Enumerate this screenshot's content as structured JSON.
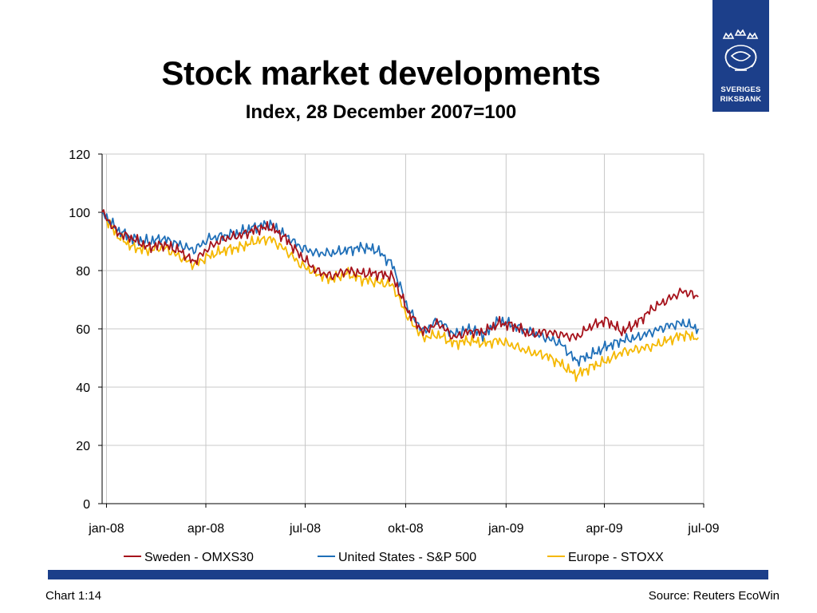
{
  "header": {
    "title": "Stock market developments",
    "subtitle": "Index, 28 December 2007=100",
    "logo": {
      "line1": "SVERIGES",
      "line2": "RIKSBANK",
      "icon": "riksbank-crest-icon"
    }
  },
  "footer": {
    "chart_number": "Chart 1:14",
    "source": "Source: Reuters EcoWin"
  },
  "colors": {
    "sweden": "#a6121b",
    "us": "#1f6fb8",
    "europe": "#f5b800",
    "brand": "#1c3f8a",
    "grid": "#c8c8c8"
  },
  "chart_data": {
    "type": "line",
    "title": "Stock market developments",
    "subtitle": "Index, 28 December 2007=100",
    "xlabel": "",
    "ylabel": "",
    "ylim": [
      0,
      120
    ],
    "yticks": [
      0,
      20,
      40,
      60,
      80,
      100,
      120
    ],
    "xticks": [
      "jan-08",
      "apr-08",
      "jul-08",
      "okt-08",
      "jan-09",
      "apr-09",
      "jul-09"
    ],
    "xlim": [
      "2007-12-28",
      "2009-07-01"
    ],
    "grid": true,
    "legend": "bottom",
    "x": [
      "2007-12-28",
      "2008-01-11",
      "2008-01-25",
      "2008-02-08",
      "2008-02-22",
      "2008-03-07",
      "2008-03-21",
      "2008-04-04",
      "2008-04-18",
      "2008-05-02",
      "2008-05-16",
      "2008-05-30",
      "2008-06-13",
      "2008-06-27",
      "2008-07-11",
      "2008-07-25",
      "2008-08-08",
      "2008-08-22",
      "2008-09-05",
      "2008-09-19",
      "2008-10-03",
      "2008-10-17",
      "2008-10-31",
      "2008-11-14",
      "2008-11-28",
      "2008-12-12",
      "2008-12-26",
      "2009-01-09",
      "2009-01-23",
      "2009-02-06",
      "2009-02-20",
      "2009-03-06",
      "2009-03-20",
      "2009-04-03",
      "2009-04-17",
      "2009-05-01",
      "2009-05-15",
      "2009-05-29",
      "2009-06-12",
      "2009-06-26"
    ],
    "series": [
      {
        "name": "Sweden - OMXS30",
        "color": "#a6121b",
        "values": [
          100,
          93,
          91,
          88,
          89,
          87,
          83,
          88,
          91,
          92,
          94,
          95,
          91,
          85,
          80,
          78,
          80,
          79,
          79,
          78,
          66,
          59,
          62,
          57,
          59,
          59,
          62,
          61,
          58,
          59,
          58,
          57,
          61,
          63,
          59,
          62,
          67,
          70,
          73,
          71
        ]
      },
      {
        "name": "United States - S&P 500",
        "color": "#1f6fb8",
        "values": [
          100,
          94,
          91,
          90,
          91,
          89,
          87,
          91,
          92,
          93,
          95,
          96,
          92,
          88,
          86,
          86,
          87,
          88,
          87,
          82,
          67,
          59,
          63,
          58,
          60,
          58,
          63,
          61,
          59,
          57,
          55,
          49,
          51,
          54,
          56,
          57,
          59,
          61,
          62,
          60
        ]
      },
      {
        "name": "Europe - STOXX",
        "color": "#f5b800",
        "values": [
          100,
          92,
          88,
          87,
          88,
          85,
          82,
          85,
          87,
          88,
          90,
          91,
          87,
          82,
          79,
          77,
          79,
          77,
          76,
          75,
          64,
          57,
          58,
          55,
          56,
          55,
          56,
          54,
          52,
          51,
          48,
          44,
          47,
          49,
          52,
          53,
          54,
          56,
          58,
          57
        ]
      }
    ]
  }
}
